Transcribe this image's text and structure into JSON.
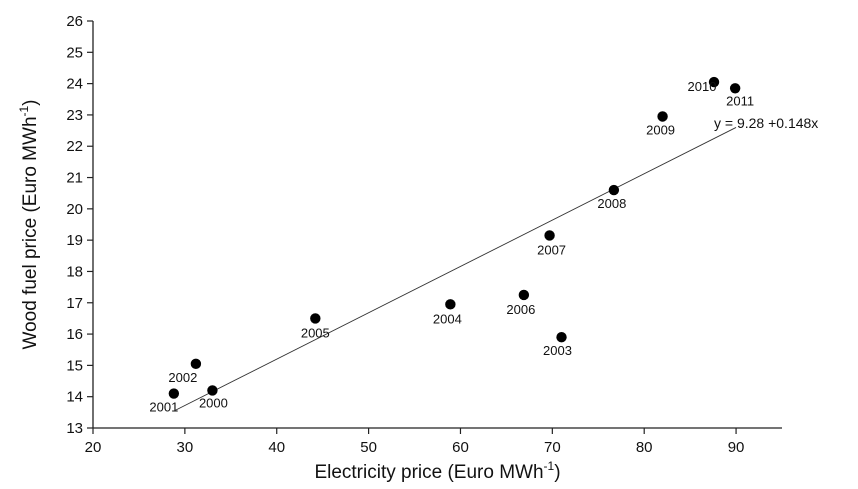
{
  "chart_data": {
    "type": "scatter",
    "xlabel": "Electricity price (Euro MWh",
    "xlabel_sup": "-1",
    "xlabel_close": ")",
    "ylabel": "Wood fuel price (Euro MWh",
    "ylabel_sup": "-1",
    "ylabel_close": ")",
    "xlim": [
      20,
      95
    ],
    "ylim": [
      13,
      26
    ],
    "xticks": [
      20,
      30,
      40,
      50,
      60,
      70,
      80,
      90
    ],
    "yticks": [
      13,
      14,
      15,
      16,
      17,
      18,
      19,
      20,
      21,
      22,
      23,
      24,
      25,
      26
    ],
    "grid": false,
    "points": [
      {
        "label": "2000",
        "x": 33.0,
        "y": 14.2
      },
      {
        "label": "2001",
        "x": 28.8,
        "y": 14.1
      },
      {
        "label": "2002",
        "x": 31.2,
        "y": 15.05
      },
      {
        "label": "2003",
        "x": 71.0,
        "y": 15.9
      },
      {
        "label": "2004",
        "x": 58.9,
        "y": 16.95
      },
      {
        "label": "2005",
        "x": 44.2,
        "y": 16.5
      },
      {
        "label": "2006",
        "x": 66.9,
        "y": 17.25
      },
      {
        "label": "2007",
        "x": 69.7,
        "y": 19.15
      },
      {
        "label": "2008",
        "x": 76.7,
        "y": 20.6
      },
      {
        "label": "2009",
        "x": 82.0,
        "y": 22.95
      },
      {
        "label": "2010",
        "x": 87.6,
        "y": 24.05
      },
      {
        "label": "2011",
        "x": 89.9,
        "y": 23.85
      }
    ],
    "fit": {
      "x_start": 29.0,
      "x_end": 90.0
    },
    "equation": "y = 9.28 +0.148x"
  }
}
